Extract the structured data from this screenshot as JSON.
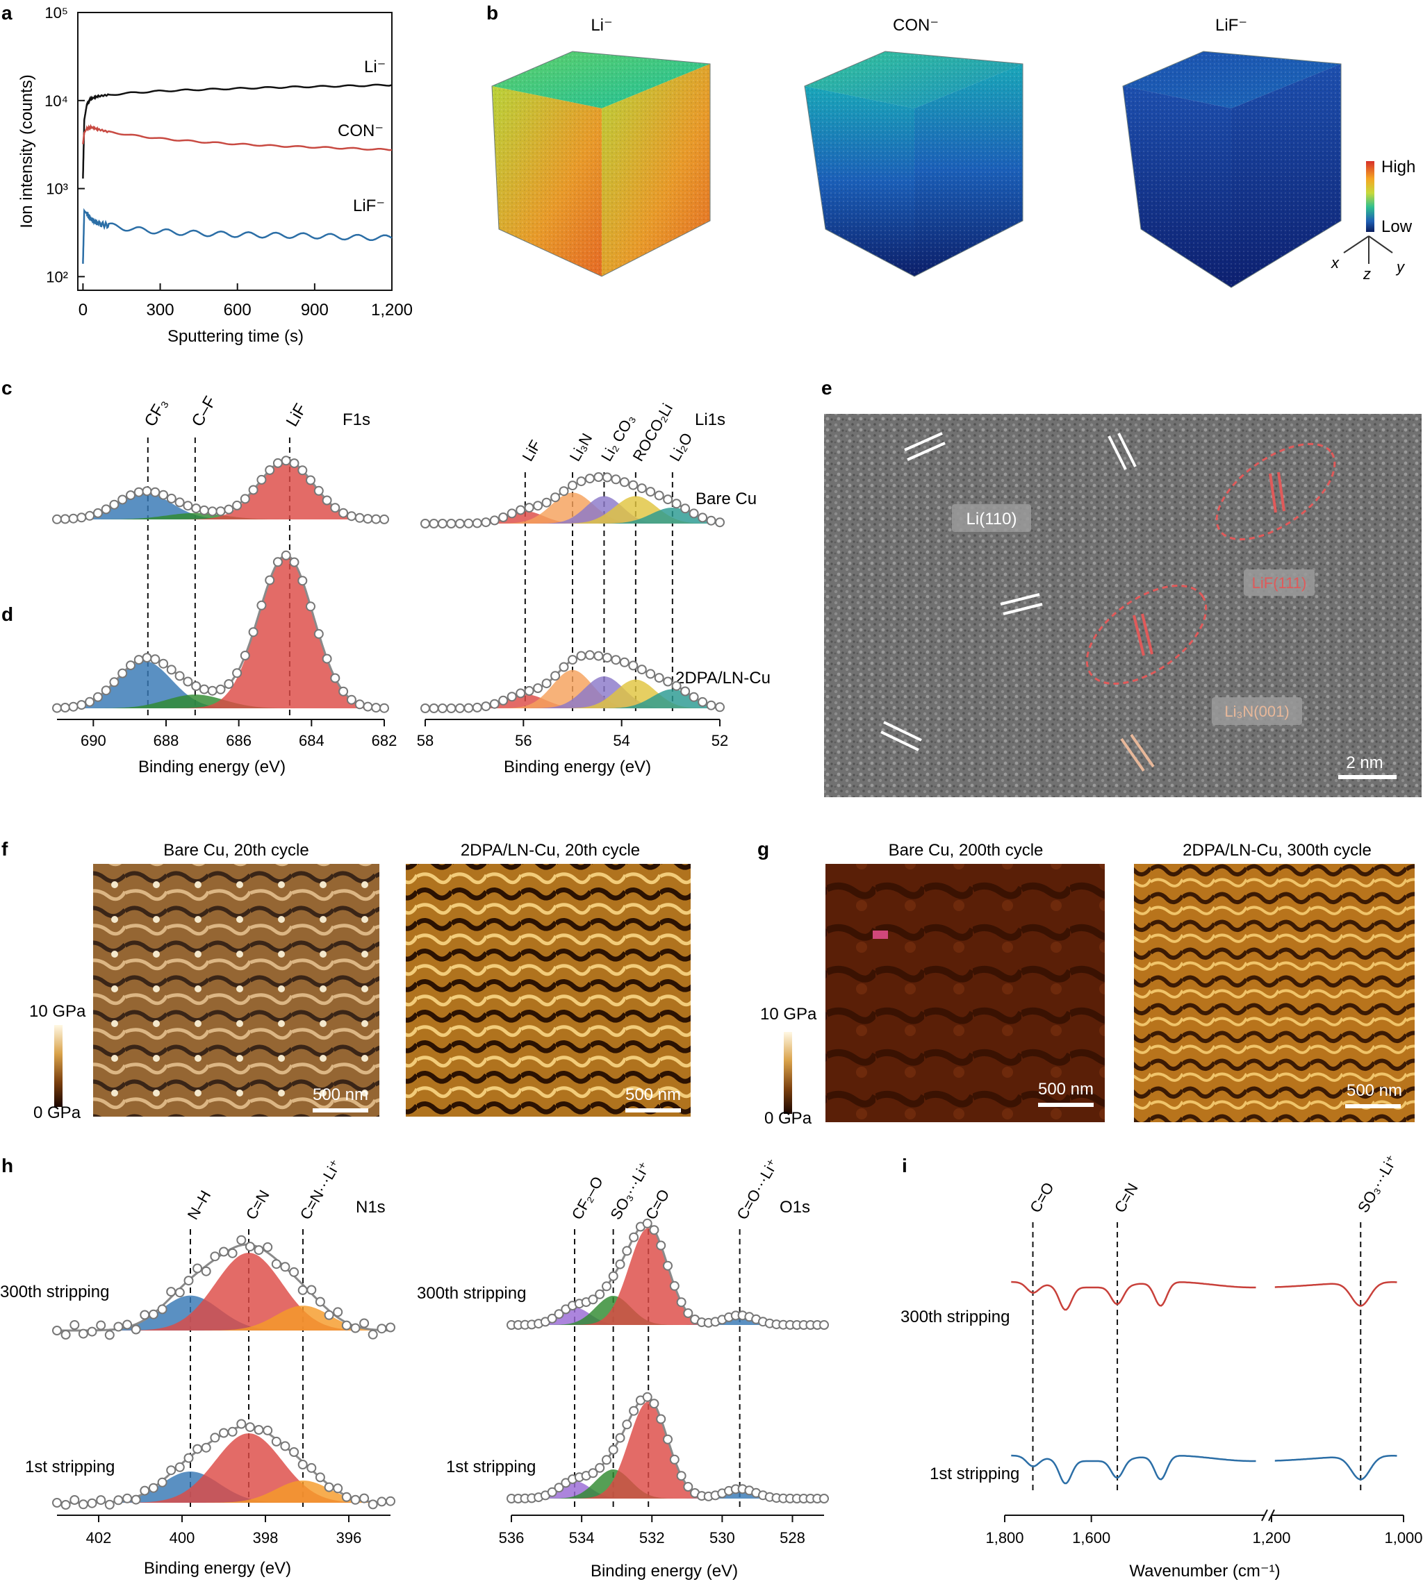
{
  "panel_letters": [
    "a",
    "b",
    "c",
    "d",
    "e",
    "f",
    "g",
    "h",
    "i"
  ],
  "colors": {
    "li": "#111111",
    "con": "#c84a42",
    "lif_line": "#2b6ea6",
    "fit_blue": "#3677b5",
    "fit_green": "#2f8a2f",
    "fit_red": "#dd4b46",
    "fit_orange": "#f5a15c",
    "fit_purple": "#8b79c9",
    "fit_yellow": "#e0c440",
    "fit_teal": "#2a9a91",
    "fit_violet": "#9a6ad6",
    "envelope": "#8a8a8a",
    "ir_red": "#c8403a",
    "ir_blue": "#2b6ea6",
    "annot_red": "#e05a5a",
    "annot_peach": "#e8b89a"
  },
  "chart_data": [
    {
      "id": "a",
      "type": "line",
      "xlabel": "Sputtering time (s)",
      "ylabel": "Ion intensity (counts)",
      "xlim": [
        -20,
        1200
      ],
      "xticks": [
        "0",
        "300",
        "600",
        "900",
        "1,200"
      ],
      "ylog": true,
      "ylim": [
        70,
        100000
      ],
      "yticks": [
        "10²",
        "10³",
        "10⁴",
        "10⁵"
      ],
      "series": [
        {
          "name": "Li⁻",
          "x": [
            0,
            5,
            15,
            30,
            60,
            100,
            200,
            300,
            450,
            600,
            750,
            900,
            1050,
            1200
          ],
          "y": [
            1300,
            6000,
            9000,
            10500,
            11200,
            11600,
            12300,
            12800,
            13300,
            13700,
            14100,
            14400,
            14700,
            15000
          ]
        },
        {
          "name": "CON⁻",
          "x": [
            0,
            5,
            15,
            30,
            60,
            100,
            200,
            300,
            450,
            600,
            750,
            900,
            1050,
            1200
          ],
          "y": [
            3200,
            4300,
            4800,
            5000,
            4700,
            4400,
            4000,
            3700,
            3400,
            3200,
            3050,
            2950,
            2850,
            2750
          ]
        },
        {
          "name": "LiF⁻",
          "x": [
            0,
            5,
            15,
            30,
            60,
            100,
            200,
            300,
            450,
            600,
            750,
            900,
            1050,
            1200
          ],
          "y": [
            140,
            560,
            520,
            450,
            400,
            380,
            345,
            325,
            310,
            300,
            295,
            290,
            280,
            275
          ]
        }
      ]
    },
    {
      "id": "c",
      "type": "area",
      "series_label": "F1s",
      "peaks": [
        "CF₃",
        "C–F",
        "LiF"
      ],
      "peak_positions": [
        688.5,
        687.2,
        684.6
      ],
      "xlim": [
        691,
        682
      ]
    },
    {
      "id": "c_li",
      "type": "area",
      "series_label": "Li1s",
      "sample": "Bare Cu",
      "peaks": [
        "LiF",
        "Li₃N",
        "Li₂ CO₃",
        "ROCO₂Li",
        "Li₂O"
      ],
      "peak_positions": [
        56.1,
        55.2,
        54.6,
        54.0,
        53.3
      ],
      "xlim": [
        58,
        52
      ]
    },
    {
      "id": "d",
      "type": "area",
      "xlabel": "Binding energy (eV)",
      "xlim": [
        691,
        682
      ],
      "xticks": [
        "690",
        "688",
        "686",
        "684",
        "682"
      ],
      "components": [
        {
          "color": "blue",
          "center": 688.6,
          "height": 0.31,
          "sigma": 0.75
        },
        {
          "color": "green",
          "center": 687.2,
          "height": 0.09,
          "sigma": 0.8
        },
        {
          "color": "red",
          "center": 684.7,
          "height": 1.0,
          "sigma": 0.75
        }
      ]
    },
    {
      "id": "d_li",
      "type": "area",
      "sample": "2DPA/LN-Cu",
      "xlabel": "Binding energy (eV)",
      "xlim": [
        58,
        52
      ],
      "xticks": [
        "58",
        "56",
        "54",
        "52"
      ],
      "components": [
        {
          "color": "red",
          "center": 56.1,
          "height": 0.22
        },
        {
          "color": "orange",
          "center": 55.2,
          "height": 0.6
        },
        {
          "color": "purple",
          "center": 54.6,
          "height": 0.5
        },
        {
          "color": "yellow",
          "center": 54.0,
          "height": 0.45
        },
        {
          "color": "teal",
          "center": 53.3,
          "height": 0.3
        }
      ]
    },
    {
      "id": "h",
      "type": "area",
      "series_label": "N1s",
      "peaks": [
        "N–H",
        "C=N",
        "C=N···Li⁺"
      ],
      "peak_positions": [
        399.8,
        398.4,
        397.1
      ],
      "xlabel": "Binding energy (eV)",
      "xlim": [
        403,
        395
      ],
      "xticks": [
        "402",
        "400",
        "398",
        "396"
      ],
      "rows": [
        "300th stripping",
        "1st stripping"
      ]
    },
    {
      "id": "h_o",
      "type": "area",
      "series_label": "O1s",
      "peaks": [
        "CF₂–O",
        "SO₃···Li⁺",
        "C=O",
        "C=O···Li⁺"
      ],
      "peak_positions": [
        534.2,
        533.1,
        532.1,
        529.5
      ],
      "xlabel": "Binding energy (eV)",
      "xlim": [
        536,
        527.1
      ],
      "xticks": [
        "536",
        "534",
        "532",
        "530",
        "528"
      ],
      "rows": [
        "300th stripping",
        "1st stripping"
      ]
    },
    {
      "id": "i",
      "type": "line",
      "peaks": [
        "C=O",
        "C=N",
        "SO₃···Li⁺"
      ],
      "peak_positions": [
        1735,
        1540,
        1065
      ],
      "xlabel": "Wavenumber (cm⁻¹)",
      "xticks": [
        "1,800",
        "1,600",
        "1,200",
        "1,000"
      ],
      "rows": [
        "300th stripping",
        "1st stripping"
      ]
    }
  ],
  "panel_b": {
    "labels": [
      "Li⁻",
      "CON⁻",
      "LiF⁻"
    ],
    "colorbar": {
      "high": "High",
      "low": "Low"
    },
    "axes": [
      "x",
      "z",
      "y"
    ]
  },
  "panel_e": {
    "labels": [
      "Li(110)",
      "LiF(111)",
      "Li₃N(001)"
    ],
    "scale_bar": "2 nm"
  },
  "panel_f": {
    "titles": [
      "Bare Cu, 20th cycle",
      "2DPA/LN-Cu, 20th cycle"
    ],
    "colorbar": {
      "max": "10 GPa",
      "min": "0 GPa"
    },
    "scale_bar": "500 nm"
  },
  "panel_g": {
    "titles": [
      "Bare Cu, 200th cycle",
      "2DPA/LN-Cu, 300th cycle"
    ],
    "colorbar": {
      "max": "10 GPa",
      "min": "0 GPa"
    },
    "scale_bar": "500 nm"
  }
}
